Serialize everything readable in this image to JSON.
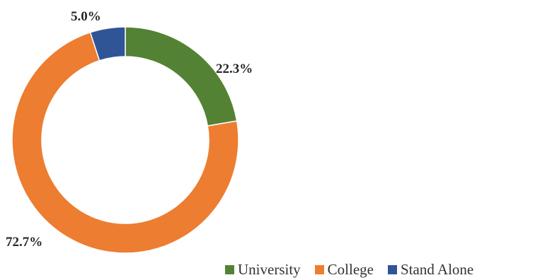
{
  "chart_data": {
    "type": "pie",
    "variant": "donut",
    "title": "",
    "legend_position": "bottom-right",
    "categories": [
      "University",
      "College",
      "Stand Alone"
    ],
    "values": [
      22.3,
      72.7,
      5.0
    ],
    "data_labels": [
      "22.3%",
      "72.7%",
      "5.0%"
    ],
    "colors": [
      "#548235",
      "#ED7D31",
      "#2F5597"
    ]
  }
}
